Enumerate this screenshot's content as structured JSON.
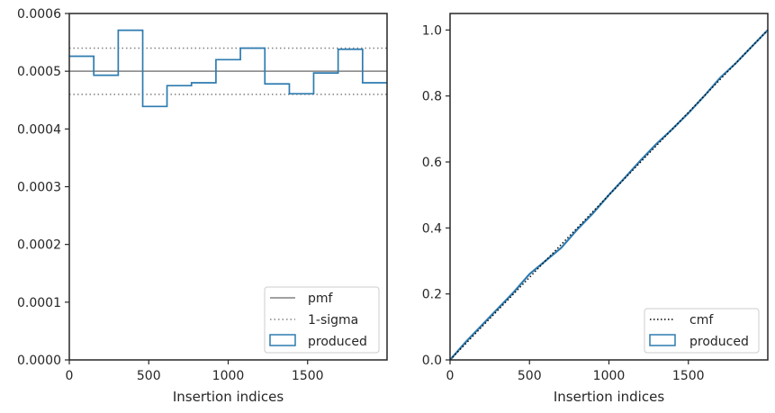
{
  "chart_data": [
    {
      "type": "step",
      "xlabel": "Insertion indices",
      "ylabel": "",
      "xlim": [
        0,
        2000
      ],
      "ylim": [
        0,
        0.0006
      ],
      "x_ticks": [
        0,
        500,
        1000,
        1500
      ],
      "x_tick_labels": [
        "0",
        "500",
        "1000",
        "1500"
      ],
      "y_ticks": [
        0,
        0.0001,
        0.0002,
        0.0003,
        0.0004,
        0.0005,
        0.0006
      ],
      "y_tick_labels": [
        "0.0000",
        "0.0001",
        "0.0002",
        "0.0003",
        "0.0004",
        "0.0005",
        "0.0006"
      ],
      "grid": false,
      "legend_position": "bottom-right",
      "pmf": {
        "name": "pmf",
        "value": 0.0005,
        "color": "#808080",
        "style": "solid"
      },
      "sigma": {
        "name": "1-sigma",
        "upper": 0.00054,
        "lower": 0.00046,
        "color": "#808080",
        "style": "dotted"
      },
      "produced": {
        "name": "produced",
        "color": "#2e7bb0",
        "bin_edges": [
          0,
          154,
          308,
          462,
          615,
          769,
          923,
          1077,
          1231,
          1385,
          1538,
          1692,
          1846,
          2000
        ],
        "values": [
          0.000526,
          0.000493,
          0.000571,
          0.000439,
          0.000475,
          0.00048,
          0.00052,
          0.00054,
          0.000478,
          0.000461,
          0.000497,
          0.000538,
          0.00048
        ]
      }
    },
    {
      "type": "line",
      "xlabel": "Insertion indices",
      "ylabel": "",
      "xlim": [
        0,
        2000
      ],
      "ylim": [
        0,
        1.05
      ],
      "x_ticks": [
        0,
        500,
        1000,
        1500
      ],
      "x_tick_labels": [
        "0",
        "500",
        "1000",
        "1500"
      ],
      "y_ticks": [
        0,
        0.2,
        0.4,
        0.6,
        0.8,
        1.0
      ],
      "y_tick_labels": [
        "0.0",
        "0.2",
        "0.4",
        "0.6",
        "0.8",
        "1.0"
      ],
      "grid": false,
      "legend_position": "bottom-right",
      "cmf": {
        "name": "cmf",
        "x": [
          0,
          2000
        ],
        "y": [
          0,
          1.0
        ],
        "color": "#000000",
        "style": "dotted"
      },
      "produced": {
        "name": "produced",
        "color": "#2e7bb0",
        "x": [
          0,
          100,
          200,
          300,
          400,
          500,
          600,
          700,
          800,
          900,
          1000,
          1100,
          1200,
          1300,
          1400,
          1500,
          1600,
          1700,
          1800,
          1900,
          2000
        ],
        "y": [
          0,
          0.055,
          0.105,
          0.155,
          0.205,
          0.26,
          0.3,
          0.34,
          0.395,
          0.445,
          0.5,
          0.552,
          0.605,
          0.655,
          0.7,
          0.748,
          0.8,
          0.855,
          0.9,
          0.95,
          1.0
        ]
      }
    }
  ]
}
